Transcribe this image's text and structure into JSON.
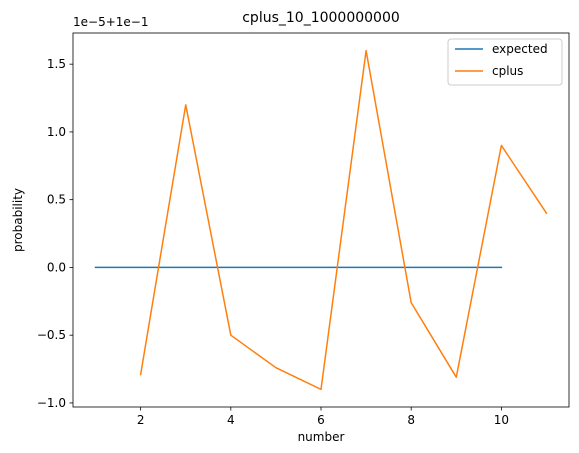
{
  "chart_data": {
    "type": "line",
    "title": "cplus_10_1000000000",
    "xlabel": "number",
    "ylabel": "probability",
    "offset_label": "1e−5+1e−1",
    "xlim": [
      0.5,
      11.5
    ],
    "ylim": [
      -1.03,
      1.73
    ],
    "xticks": [
      2,
      4,
      6,
      8,
      10
    ],
    "xtick_labels": [
      "2",
      "4",
      "6",
      "8",
      "10"
    ],
    "yticks": [
      -1.0,
      -0.5,
      0.0,
      0.5,
      1.0,
      1.5
    ],
    "ytick_labels": [
      "−1.0",
      "−0.5",
      "0.0",
      "0.5",
      "1.0",
      "1.5"
    ],
    "grid": false,
    "legend_position": "top-right",
    "series": [
      {
        "name": "expected",
        "color": "#1f77b4",
        "x": [
          1,
          2,
          3,
          4,
          5,
          6,
          7,
          8,
          9,
          10
        ],
        "y": [
          0,
          0,
          0,
          0,
          0,
          0,
          0,
          0,
          0,
          0
        ]
      },
      {
        "name": "cplus",
        "color": "#ff7f0e",
        "x": [
          2,
          3,
          4,
          5,
          6,
          7,
          8,
          9,
          10,
          11
        ],
        "y": [
          -0.79,
          1.2,
          -0.5,
          -0.74,
          -0.9,
          1.6,
          -0.26,
          -0.81,
          0.9,
          0.4
        ]
      }
    ]
  }
}
